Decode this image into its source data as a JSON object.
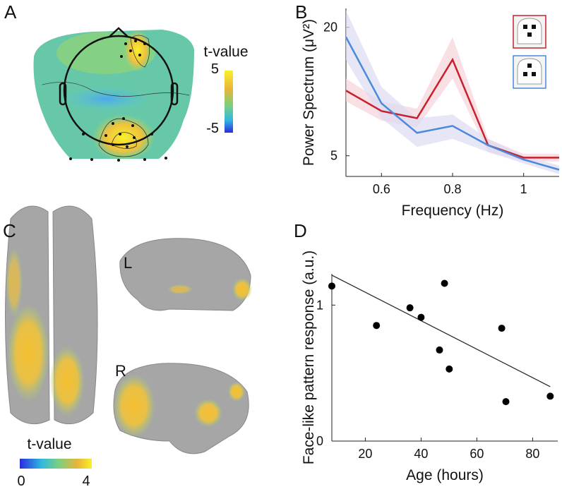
{
  "panel_labels": [
    "A",
    "B",
    "C",
    "D"
  ],
  "topomap": {
    "colorbar_title": "t-value",
    "colorbar_ticks": [
      5,
      -5
    ]
  },
  "brains": {
    "views": [
      "L",
      "R"
    ],
    "colorbar_title": "t-value",
    "colorbar_ticks": [
      0,
      4
    ]
  },
  "chart_data": [
    {
      "type": "line",
      "xlabel": "Frequency (Hz)",
      "ylabel": "Power Spectrum (μV²)",
      "x": [
        0.5,
        0.6,
        0.7,
        0.8,
        0.9,
        1.0,
        1.1
      ],
      "series": [
        {
          "color": "#c8202c",
          "band_color": "#f6d3da",
          "values": [
            10.1,
            8.1,
            7.5,
            14.1,
            5.6,
            4.9,
            4.9
          ],
          "upper": [
            11.5,
            9,
            8.3,
            18,
            6,
            5.1,
            5.1
          ],
          "lower": [
            9,
            7.3,
            6.8,
            11.5,
            5.2,
            4.7,
            4.7
          ]
        },
        {
          "color": "#4a8ad8",
          "band_color": "#dcdcf4",
          "values": [
            18,
            8.8,
            6.4,
            6.9,
            5.6,
            4.8,
            4.3
          ],
          "upper": [
            24,
            10.5,
            7.5,
            7.8,
            6,
            5,
            4.5
          ],
          "lower": [
            14,
            7.5,
            5.5,
            6,
            5.2,
            4.6,
            4.1
          ]
        }
      ],
      "xlim": [
        0.5,
        1.1
      ],
      "ylim": [
        4,
        24.5
      ],
      "yscale": "log",
      "xticks": [
        0.6,
        0.8,
        1
      ],
      "yticks": [
        5,
        20
      ]
    },
    {
      "type": "scatter",
      "xlabel": "Age (hours)",
      "ylabel": "Face-like pattern response (a.u.)",
      "x": [
        8,
        24,
        36,
        40,
        46.6,
        48.4,
        50.1,
        68.9,
        70.4,
        86.3
      ],
      "values": [
        1.14,
        0.85,
        0.98,
        0.91,
        0.67,
        1.16,
        0.53,
        0.83,
        0.29,
        0.33
      ],
      "color": "#000000",
      "fit": {
        "x": [
          8,
          86.3
        ],
        "values": [
          1.22,
          0.4
        ],
        "color": "#222222"
      },
      "xlim": [
        8,
        89
      ],
      "ylim": [
        0,
        1.23
      ],
      "xticks": [
        20,
        40,
        60,
        80
      ],
      "yticks": [
        0,
        1
      ]
    }
  ]
}
